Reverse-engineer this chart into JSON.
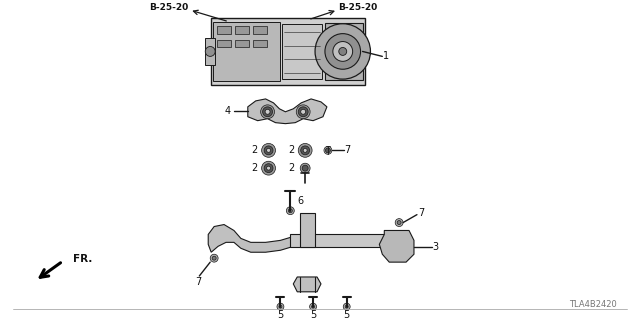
{
  "bg_color": "#ffffff",
  "diagram_code": "TLA4B2420",
  "fr_arrow_label": "FR.",
  "line_color": "#1a1a1a",
  "text_color": "#111111",
  "gray_color": "#777777",
  "dark_gray": "#555555",
  "mid_gray": "#999999",
  "light_gray": "#cccccc",
  "border_color": "#aaaaaa"
}
